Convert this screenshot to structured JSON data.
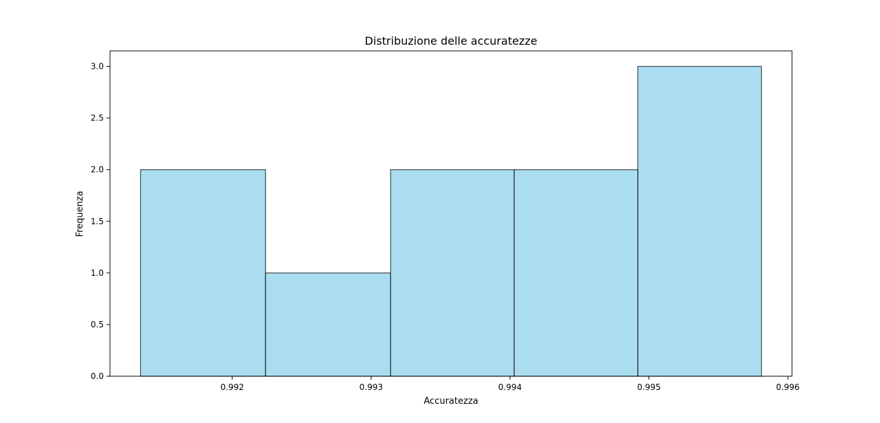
{
  "chart_data": {
    "type": "bar",
    "title": "Distribuzione delle accuratezze",
    "xlabel": "Accuratezza",
    "ylabel": "Frequenza",
    "bins": [
      {
        "start": 0.99134,
        "end": 0.99224,
        "count": 2
      },
      {
        "start": 0.99224,
        "end": 0.99314,
        "count": 1
      },
      {
        "start": 0.99314,
        "end": 0.99403,
        "count": 2
      },
      {
        "start": 0.99403,
        "end": 0.99492,
        "count": 2
      },
      {
        "start": 0.99492,
        "end": 0.99581,
        "count": 3
      }
    ],
    "xlim": [
      0.99112,
      0.99603
    ],
    "ylim": [
      0,
      3.15
    ],
    "xticks": [
      0.992,
      0.993,
      0.994,
      0.995,
      0.996
    ],
    "xtick_labels": [
      "0.992",
      "0.993",
      "0.994",
      "0.995",
      "0.996"
    ],
    "yticks": [
      0,
      0.5,
      1,
      1.5,
      2,
      2.5,
      3
    ],
    "ytick_labels": [
      "0.0",
      "0.5",
      "1.0",
      "1.5",
      "2.0",
      "2.5",
      "3.0"
    ],
    "grid": false,
    "bar_color": "#87ceeb",
    "edge_color": "#000000"
  }
}
